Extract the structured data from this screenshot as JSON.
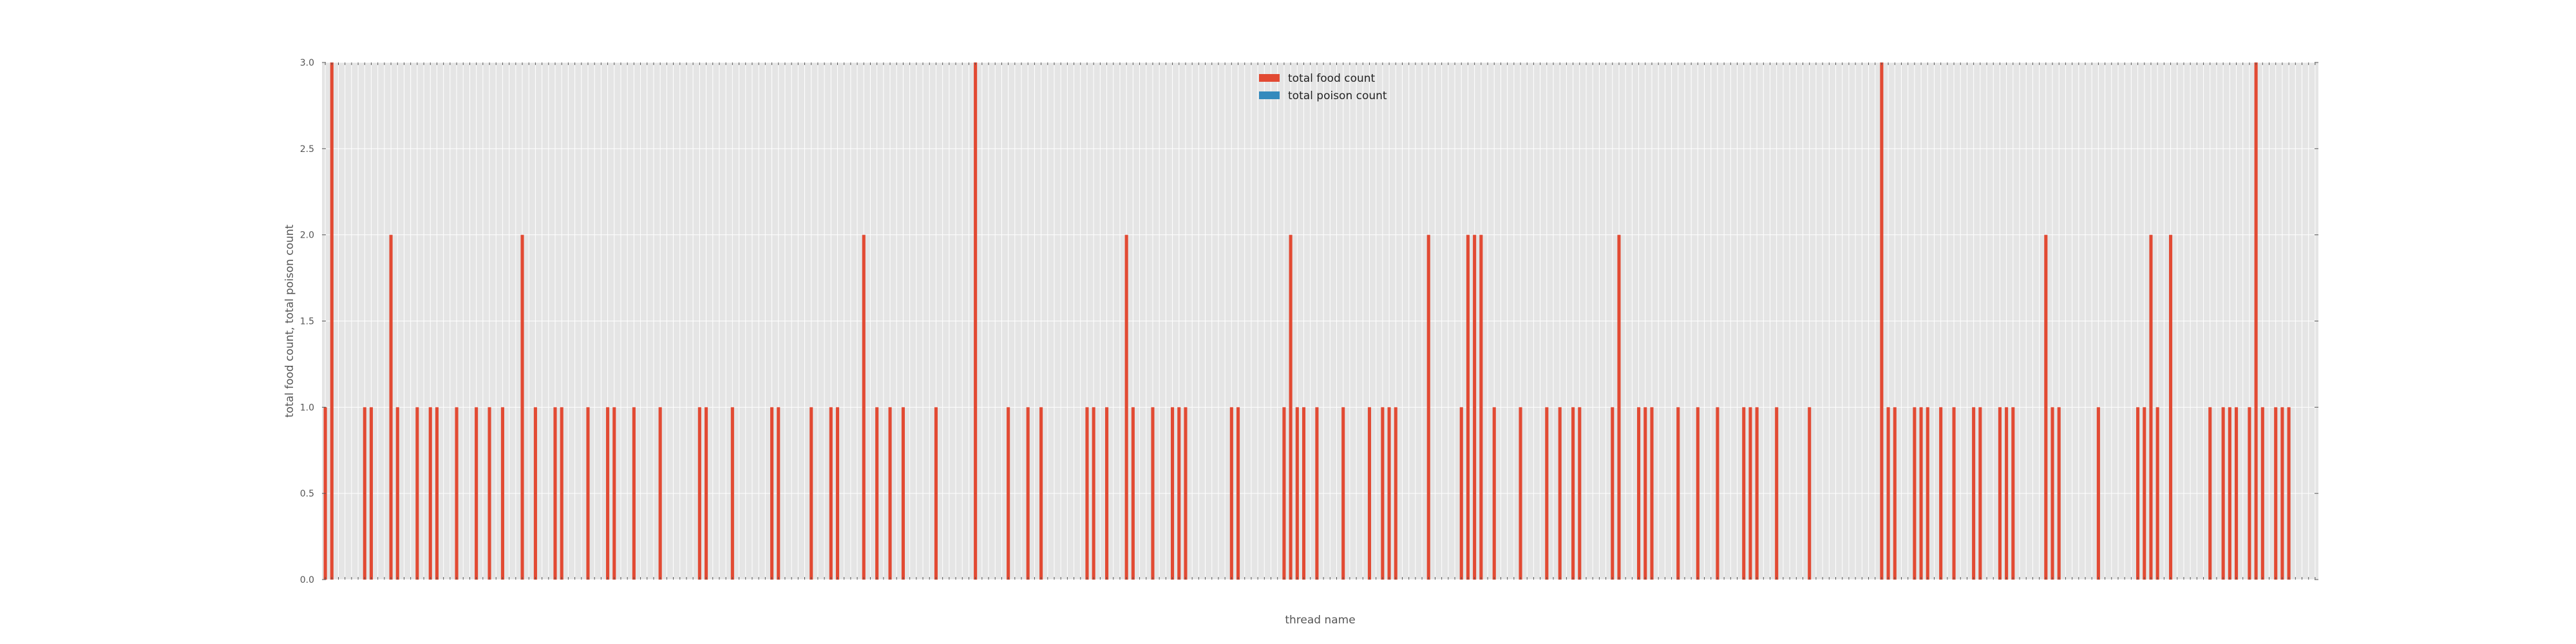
{
  "chart_data": {
    "type": "bar",
    "title": "",
    "xlabel": "thread name",
    "ylabel": "total food count, total poison count",
    "ylim": [
      0,
      3
    ],
    "yticks": [
      "0.0",
      "0.5",
      "1.0",
      "1.5",
      "2.0",
      "2.5",
      "3.0"
    ],
    "grid": true,
    "legend_position": "top-center",
    "colors": {
      "background": "#e5e5e5",
      "grid": "#ffffff",
      "food": "#e24a33",
      "poison": "#348abd"
    },
    "bar_count": 304,
    "series": [
      {
        "name": "total food count",
        "nonzero": [
          [
            0,
            1
          ],
          [
            1,
            3
          ],
          [
            6,
            1
          ],
          [
            7,
            1
          ],
          [
            10,
            2
          ],
          [
            11,
            1
          ],
          [
            14,
            1
          ],
          [
            16,
            1
          ],
          [
            17,
            1
          ],
          [
            20,
            1
          ],
          [
            23,
            1
          ],
          [
            25,
            1
          ],
          [
            27,
            1
          ],
          [
            30,
            2
          ],
          [
            32,
            1
          ],
          [
            35,
            1
          ],
          [
            36,
            1
          ],
          [
            40,
            1
          ],
          [
            43,
            1
          ],
          [
            44,
            1
          ],
          [
            47,
            1
          ],
          [
            51,
            1
          ],
          [
            57,
            1
          ],
          [
            58,
            1
          ],
          [
            62,
            1
          ],
          [
            68,
            1
          ],
          [
            69,
            1
          ],
          [
            74,
            1
          ],
          [
            77,
            1
          ],
          [
            78,
            1
          ],
          [
            82,
            2
          ],
          [
            84,
            1
          ],
          [
            86,
            1
          ],
          [
            88,
            1
          ],
          [
            93,
            1
          ],
          [
            99,
            3
          ],
          [
            104,
            1
          ],
          [
            107,
            1
          ],
          [
            109,
            1
          ],
          [
            116,
            1
          ],
          [
            117,
            1
          ],
          [
            119,
            1
          ],
          [
            122,
            2
          ],
          [
            123,
            1
          ],
          [
            126,
            1
          ],
          [
            129,
            1
          ],
          [
            130,
            1
          ],
          [
            131,
            1
          ],
          [
            138,
            1
          ],
          [
            139,
            1
          ],
          [
            146,
            1
          ],
          [
            147,
            2
          ],
          [
            148,
            1
          ],
          [
            149,
            1
          ],
          [
            151,
            1
          ],
          [
            155,
            1
          ],
          [
            159,
            1
          ],
          [
            161,
            1
          ],
          [
            162,
            1
          ],
          [
            163,
            1
          ],
          [
            168,
            2
          ],
          [
            173,
            1
          ],
          [
            174,
            2
          ],
          [
            175,
            2
          ],
          [
            176,
            2
          ],
          [
            178,
            1
          ],
          [
            182,
            1
          ],
          [
            186,
            1
          ],
          [
            188,
            1
          ],
          [
            190,
            1
          ],
          [
            191,
            1
          ],
          [
            196,
            1
          ],
          [
            197,
            2
          ],
          [
            200,
            1
          ],
          [
            201,
            1
          ],
          [
            202,
            1
          ],
          [
            206,
            1
          ],
          [
            209,
            1
          ],
          [
            212,
            1
          ],
          [
            216,
            1
          ],
          [
            217,
            1
          ],
          [
            218,
            1
          ],
          [
            221,
            1
          ],
          [
            226,
            1
          ],
          [
            237,
            3
          ],
          [
            238,
            1
          ],
          [
            239,
            1
          ],
          [
            242,
            1
          ],
          [
            243,
            1
          ],
          [
            244,
            1
          ],
          [
            246,
            1
          ],
          [
            248,
            1
          ],
          [
            251,
            1
          ],
          [
            252,
            1
          ],
          [
            255,
            1
          ],
          [
            256,
            1
          ],
          [
            257,
            1
          ],
          [
            262,
            2
          ],
          [
            263,
            1
          ],
          [
            264,
            1
          ],
          [
            270,
            1
          ],
          [
            276,
            1
          ],
          [
            277,
            1
          ],
          [
            278,
            2
          ],
          [
            279,
            1
          ],
          [
            281,
            2
          ],
          [
            287,
            1
          ],
          [
            289,
            1
          ],
          [
            290,
            1
          ],
          [
            291,
            1
          ],
          [
            293,
            1
          ],
          [
            294,
            3
          ],
          [
            295,
            1
          ],
          [
            297,
            1
          ],
          [
            298,
            1
          ],
          [
            299,
            1
          ]
        ]
      },
      {
        "name": "total poison count",
        "nonzero": []
      }
    ]
  }
}
